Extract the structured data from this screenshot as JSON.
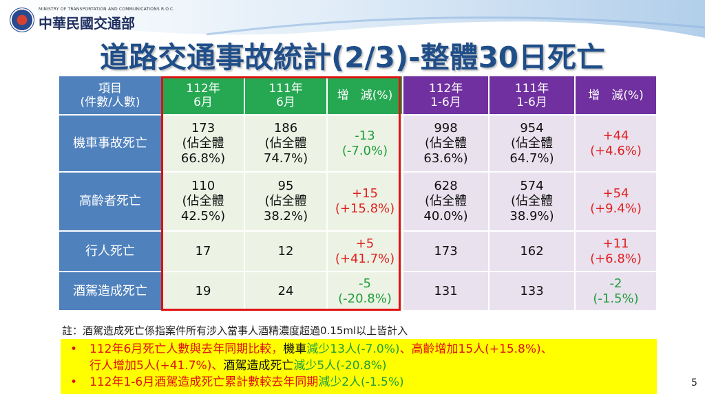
{
  "header": {
    "ministry_en": "MINISTRY OF TRANSPORTATION AND COMMUNICATIONS R.O.C.",
    "ministry_zh": "中華民國交通部"
  },
  "title": "道路交通事故統計(2/3)-整體30日死亡",
  "table": {
    "headers": {
      "item": [
        "項目",
        "(件數/人數)"
      ],
      "c1": [
        "112年",
        "6月"
      ],
      "c2": [
        "111年",
        "6月"
      ],
      "c3": "增　減(%)",
      "c4": [
        "112年",
        "1-6月"
      ],
      "c5": [
        "111年",
        "1-6月"
      ],
      "c6": "增　減(%)"
    },
    "rows": [
      {
        "label": "機車事故死亡",
        "c1": [
          "173",
          "(佔全體",
          "66.8%)"
        ],
        "c2": [
          "186",
          "(佔全體",
          "74.7%)"
        ],
        "c3": [
          "-13",
          "(-7.0%)"
        ],
        "c4": [
          "998",
          "(佔全體",
          "63.6%)"
        ],
        "c5": [
          "954",
          "(佔全體",
          "64.7%)"
        ],
        "c6": [
          "+44",
          "(+4.6%)"
        ]
      },
      {
        "label": "高齡者死亡",
        "c1": [
          "110",
          "(佔全體",
          "42.5%)"
        ],
        "c2": [
          "95",
          "(佔全體",
          "38.2%)"
        ],
        "c3": [
          "+15",
          "(+15.8%)"
        ],
        "c4": [
          "628",
          "(佔全體",
          "40.0%)"
        ],
        "c5": [
          "574",
          "(佔全體",
          "38.9%)"
        ],
        "c6": [
          "+54",
          "(+9.4%)"
        ]
      },
      {
        "label": "行人死亡",
        "c1": "17",
        "c2": "12",
        "c3": [
          "+5",
          "(+41.7%)"
        ],
        "c4": "173",
        "c5": "162",
        "c6": [
          "+11",
          "(+6.8%)"
        ]
      },
      {
        "label": "酒駕造成死亡",
        "c1": "19",
        "c2": "24",
        "c3": [
          "-5",
          "(-20.8%)"
        ],
        "c4": "131",
        "c5": "133",
        "c6": [
          "-2",
          "(-1.5%)"
        ]
      }
    ]
  },
  "note": "註：酒駕造成死亡係指案件所有涉入當事人酒精濃度超過0.15ml以上皆計入",
  "summary": {
    "bullet": "•",
    "line1": [
      "112年6月死亡人數與去年同期比較，",
      "機車",
      "減少13人(-7.0%)",
      "、高齡增加15人(+15.8%)、"
    ],
    "line2": [
      "行人增加5人(+41.7%)、",
      "酒駕造成死亡",
      "減少5人(-20.8%)"
    ],
    "line3": [
      "112年1-6月酒駕造成死亡累計數較去年同期",
      "減少2人(-1.5%)"
    ]
  },
  "page_number": "5",
  "colors": {
    "item_header": "#4f81bd",
    "green_header": "#26a852",
    "purple_header": "#7030a0",
    "green_cell": "#ecf3e4",
    "purple_cell": "#e9e1ee",
    "increase": "#e02020",
    "decrease": "#1e9e3a",
    "summary_bg": "#ffff00"
  }
}
